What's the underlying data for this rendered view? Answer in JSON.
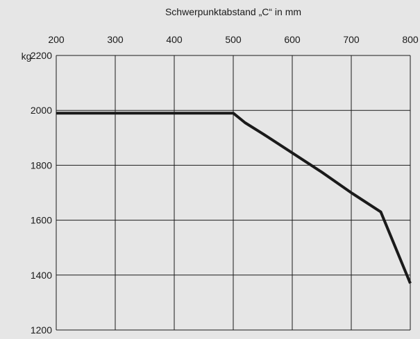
{
  "chart_data": {
    "type": "line",
    "title": "Schwerpunktabstand „C“ in mm",
    "xlabel": "",
    "ylabel": "kg",
    "xlim": [
      200,
      800
    ],
    "ylim": [
      1200,
      2200
    ],
    "x_ticks": [
      200,
      300,
      400,
      500,
      600,
      700,
      800
    ],
    "y_ticks": [
      1200,
      1400,
      1600,
      1800,
      2000,
      2200
    ],
    "x_axis_position": "top",
    "grid": true,
    "series": [
      {
        "x": [
          200,
          500,
          520,
          550,
          600,
          650,
          700,
          750,
          800
        ],
        "values": [
          1990,
          1990,
          1955,
          1915,
          1845,
          1775,
          1700,
          1630,
          1370
        ]
      }
    ],
    "colors": {
      "background": "#e6e6e6",
      "grid": "#1a1a1a",
      "line": "#1a1a1a"
    }
  }
}
